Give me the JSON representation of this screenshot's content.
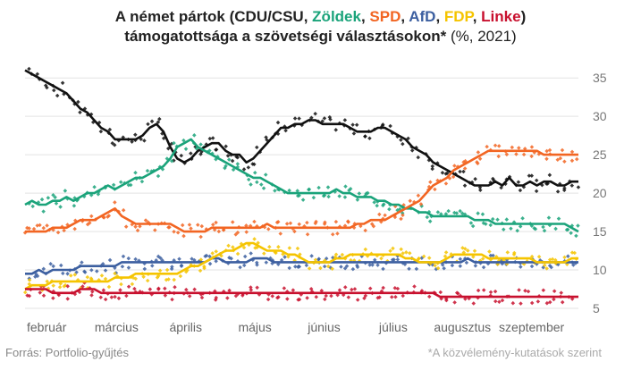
{
  "title": {
    "prefix": "A német pártok (",
    "parties": [
      {
        "name": "CDU/CSU",
        "color": "#222222"
      },
      {
        "name": "Zöldek",
        "color": "#1aa37a"
      },
      {
        "name": "SPD",
        "color": "#f26522"
      },
      {
        "name": "AfD",
        "color": "#3c5fa0"
      },
      {
        "name": "FDP",
        "color": "#f5c400"
      },
      {
        "name": "Linke",
        "color": "#c8102e"
      }
    ],
    "separator": ", ",
    "suffix": ")",
    "line2_bold": "támogatottsága a szövetségi választásokon*",
    "line2_unit": " (%, 2021)"
  },
  "footer": {
    "source": "Forrás: Portfolio-gyűjtés",
    "note": "*A közvélemény-kutatások szerint"
  },
  "chart_data": {
    "type": "line",
    "title": "A német pártok (CDU/CSU, Zöldek, SPD, AfD, FDP, Linke) támogatottsága a szövetségi választásokon* (%, 2021)",
    "x_ticks": [
      "február",
      "március",
      "április",
      "május",
      "június",
      "július",
      "augusztus",
      "szeptember"
    ],
    "x_tick_positions": [
      0.0,
      1.0,
      2.0,
      3.0,
      4.0,
      5.0,
      6.0,
      7.0
    ],
    "xlim": [
      0.0,
      8.0
    ],
    "ylim": [
      5,
      37
    ],
    "y_ticks": [
      5,
      10,
      15,
      20,
      25,
      30,
      35
    ],
    "grid": "horizontal",
    "y_axis_side": "right",
    "series": [
      {
        "name": "CDU/CSU",
        "color": "#111111",
        "x": [
          0.0,
          0.1,
          0.2,
          0.3,
          0.4,
          0.5,
          0.6,
          0.7,
          0.8,
          0.9,
          1.0,
          1.1,
          1.2,
          1.3,
          1.4,
          1.5,
          1.6,
          1.7,
          1.8,
          1.9,
          2.0,
          2.1,
          2.2,
          2.3,
          2.4,
          2.5,
          2.6,
          2.7,
          2.8,
          2.9,
          3.0,
          3.1,
          3.2,
          3.3,
          3.4,
          3.5,
          3.6,
          3.7,
          3.8,
          3.9,
          4.0,
          4.1,
          4.2,
          4.3,
          4.4,
          4.5,
          4.6,
          4.7,
          4.8,
          4.9,
          5.0,
          5.1,
          5.2,
          5.3,
          5.4,
          5.5,
          5.6,
          5.7,
          5.8,
          5.9,
          6.0,
          6.1,
          6.2,
          6.3,
          6.4,
          6.5,
          6.6,
          6.7,
          6.8,
          6.9,
          7.0,
          7.1,
          7.2,
          7.3,
          7.4,
          7.5,
          7.6,
          7.7,
          7.8,
          7.9,
          8.0
        ],
        "values": [
          36.0,
          35.5,
          35.0,
          34.5,
          34.0,
          33.5,
          33.0,
          32.0,
          31.0,
          30.5,
          29.5,
          28.5,
          28.0,
          27.0,
          27.0,
          27.0,
          27.0,
          27.5,
          28.5,
          29.0,
          28.0,
          26.0,
          24.5,
          24.0,
          24.5,
          25.5,
          26.0,
          26.5,
          26.5,
          25.5,
          25.0,
          25.0,
          24.0,
          24.5,
          25.5,
          26.5,
          27.5,
          28.5,
          28.5,
          29.0,
          29.0,
          29.5,
          29.5,
          29.0,
          29.0,
          29.0,
          29.0,
          28.5,
          28.0,
          28.0,
          28.0,
          28.5,
          28.5,
          28.0,
          27.5,
          27.0,
          26.0,
          25.5,
          25.0,
          24.0,
          23.5,
          23.0,
          22.5,
          22.0,
          21.5,
          21.0,
          21.0,
          21.0,
          21.5,
          21.0,
          22.0,
          21.0,
          21.0,
          21.5,
          21.0,
          21.5,
          21.5,
          21.0,
          21.0,
          21.5,
          21.5
        ]
      },
      {
        "name": "Zöldek",
        "color": "#1aa37a",
        "x": [
          0.0,
          0.1,
          0.2,
          0.3,
          0.4,
          0.5,
          0.6,
          0.7,
          0.8,
          0.9,
          1.0,
          1.1,
          1.2,
          1.3,
          1.4,
          1.5,
          1.6,
          1.7,
          1.8,
          1.9,
          2.0,
          2.1,
          2.2,
          2.3,
          2.4,
          2.5,
          2.6,
          2.7,
          2.8,
          2.9,
          3.0,
          3.1,
          3.2,
          3.3,
          3.4,
          3.5,
          3.6,
          3.7,
          3.8,
          3.9,
          4.0,
          4.1,
          4.2,
          4.3,
          4.4,
          4.5,
          4.6,
          4.7,
          4.8,
          4.9,
          5.0,
          5.1,
          5.2,
          5.3,
          5.4,
          5.5,
          5.6,
          5.7,
          5.8,
          5.9,
          6.0,
          6.1,
          6.2,
          6.3,
          6.4,
          6.5,
          6.6,
          6.7,
          6.8,
          6.9,
          7.0,
          7.1,
          7.2,
          7.3,
          7.4,
          7.5,
          7.6,
          7.7,
          7.8,
          7.9,
          8.0
        ],
        "values": [
          18.5,
          19.0,
          18.5,
          18.5,
          19.0,
          19.0,
          19.5,
          19.0,
          19.5,
          20.0,
          20.0,
          20.5,
          21.0,
          20.5,
          21.0,
          21.5,
          22.0,
          22.0,
          22.5,
          23.0,
          23.5,
          24.5,
          26.0,
          26.5,
          27.0,
          26.0,
          25.5,
          25.0,
          24.5,
          24.0,
          23.5,
          23.0,
          22.5,
          22.0,
          22.0,
          21.5,
          21.0,
          20.5,
          20.0,
          20.0,
          20.0,
          20.0,
          20.0,
          20.0,
          20.0,
          20.5,
          20.0,
          20.0,
          19.5,
          19.5,
          19.5,
          19.0,
          19.0,
          18.5,
          18.5,
          18.0,
          18.0,
          17.5,
          17.5,
          17.0,
          17.0,
          17.0,
          17.0,
          17.0,
          17.0,
          16.5,
          16.5,
          16.5,
          16.0,
          16.0,
          16.0,
          16.0,
          16.0,
          16.0,
          16.0,
          16.0,
          16.0,
          16.0,
          16.0,
          15.5,
          15.0
        ]
      },
      {
        "name": "SPD",
        "color": "#f26522",
        "x": [
          0.0,
          0.1,
          0.2,
          0.3,
          0.4,
          0.5,
          0.6,
          0.7,
          0.8,
          0.9,
          1.0,
          1.1,
          1.2,
          1.3,
          1.4,
          1.5,
          1.6,
          1.7,
          1.8,
          1.9,
          2.0,
          2.1,
          2.2,
          2.3,
          2.4,
          2.5,
          2.6,
          2.7,
          2.8,
          2.9,
          3.0,
          3.1,
          3.2,
          3.3,
          3.4,
          3.5,
          3.6,
          3.7,
          3.8,
          3.9,
          4.0,
          4.1,
          4.2,
          4.3,
          4.4,
          4.5,
          4.6,
          4.7,
          4.8,
          4.9,
          5.0,
          5.1,
          5.2,
          5.3,
          5.4,
          5.5,
          5.6,
          5.7,
          5.8,
          5.9,
          6.0,
          6.1,
          6.2,
          6.3,
          6.4,
          6.5,
          6.6,
          6.7,
          6.8,
          6.9,
          7.0,
          7.1,
          7.2,
          7.3,
          7.4,
          7.5,
          7.6,
          7.7,
          7.8,
          7.9,
          8.0
        ],
        "values": [
          15.0,
          15.0,
          15.0,
          15.0,
          15.5,
          15.5,
          15.5,
          16.0,
          16.5,
          16.5,
          16.5,
          17.0,
          17.5,
          18.0,
          17.0,
          16.5,
          16.0,
          16.0,
          16.0,
          16.0,
          16.0,
          16.0,
          15.5,
          15.0,
          15.0,
          15.0,
          15.0,
          15.5,
          15.5,
          15.5,
          15.5,
          15.5,
          15.5,
          15.5,
          15.5,
          16.0,
          15.5,
          15.5,
          15.5,
          15.5,
          15.5,
          15.5,
          15.5,
          15.5,
          15.5,
          15.5,
          15.5,
          15.5,
          16.0,
          16.0,
          16.5,
          16.5,
          16.5,
          17.0,
          17.5,
          18.0,
          18.5,
          19.0,
          20.0,
          21.0,
          21.5,
          22.0,
          23.0,
          23.5,
          24.0,
          24.5,
          25.0,
          25.5,
          25.5,
          25.5,
          25.5,
          25.5,
          25.5,
          25.5,
          25.5,
          25.0,
          25.0,
          25.0,
          25.0,
          25.0,
          25.0
        ]
      },
      {
        "name": "AfD",
        "color": "#3c5fa0",
        "x": [
          0.0,
          0.1,
          0.2,
          0.3,
          0.4,
          0.5,
          0.6,
          0.7,
          0.8,
          0.9,
          1.0,
          1.1,
          1.2,
          1.3,
          1.4,
          1.5,
          1.6,
          1.7,
          1.8,
          1.9,
          2.0,
          2.1,
          2.2,
          2.3,
          2.4,
          2.5,
          2.6,
          2.7,
          2.8,
          2.9,
          3.0,
          3.1,
          3.2,
          3.3,
          3.4,
          3.5,
          3.6,
          3.7,
          3.8,
          3.9,
          4.0,
          4.1,
          4.2,
          4.3,
          4.4,
          4.5,
          4.6,
          4.7,
          4.8,
          4.9,
          5.0,
          5.1,
          5.2,
          5.3,
          5.4,
          5.5,
          5.6,
          5.7,
          5.8,
          5.9,
          6.0,
          6.1,
          6.2,
          6.3,
          6.4,
          6.5,
          6.6,
          6.7,
          6.8,
          6.9,
          7.0,
          7.1,
          7.2,
          7.3,
          7.4,
          7.5,
          7.6,
          7.7,
          7.8,
          7.9,
          8.0
        ],
        "values": [
          9.5,
          9.5,
          10.0,
          9.5,
          10.0,
          10.0,
          10.0,
          10.0,
          10.5,
          10.5,
          10.5,
          10.5,
          10.5,
          10.5,
          11.0,
          11.0,
          11.0,
          11.0,
          11.0,
          11.0,
          11.0,
          11.0,
          11.0,
          11.0,
          11.0,
          11.0,
          11.0,
          11.5,
          11.5,
          11.0,
          11.0,
          11.0,
          11.0,
          11.5,
          11.5,
          11.5,
          11.0,
          11.0,
          11.0,
          11.0,
          11.0,
          11.0,
          11.0,
          11.0,
          11.0,
          11.0,
          11.0,
          11.0,
          11.0,
          11.0,
          11.0,
          11.0,
          11.0,
          11.0,
          11.0,
          11.0,
          11.0,
          11.0,
          11.0,
          11.0,
          11.0,
          11.0,
          11.0,
          11.0,
          11.5,
          11.0,
          11.0,
          11.0,
          11.0,
          11.0,
          11.0,
          11.0,
          11.0,
          11.0,
          11.0,
          11.0,
          11.0,
          11.0,
          11.0,
          11.0,
          11.0
        ]
      },
      {
        "name": "FDP",
        "color": "#f5c400",
        "x": [
          0.0,
          0.1,
          0.2,
          0.3,
          0.4,
          0.5,
          0.6,
          0.7,
          0.8,
          0.9,
          1.0,
          1.1,
          1.2,
          1.3,
          1.4,
          1.5,
          1.6,
          1.7,
          1.8,
          1.9,
          2.0,
          2.1,
          2.2,
          2.3,
          2.4,
          2.5,
          2.6,
          2.7,
          2.8,
          2.9,
          3.0,
          3.1,
          3.2,
          3.3,
          3.4,
          3.5,
          3.6,
          3.7,
          3.8,
          3.9,
          4.0,
          4.1,
          4.2,
          4.3,
          4.4,
          4.5,
          4.6,
          4.7,
          4.8,
          4.9,
          5.0,
          5.1,
          5.2,
          5.3,
          5.4,
          5.5,
          5.6,
          5.7,
          5.8,
          5.9,
          6.0,
          6.1,
          6.2,
          6.3,
          6.4,
          6.5,
          6.6,
          6.7,
          6.8,
          6.9,
          7.0,
          7.1,
          7.2,
          7.3,
          7.4,
          7.5,
          7.6,
          7.7,
          7.8,
          7.9,
          8.0
        ],
        "values": [
          7.5,
          8.0,
          8.0,
          8.0,
          8.5,
          8.5,
          8.5,
          8.5,
          8.5,
          8.5,
          8.5,
          8.5,
          8.5,
          9.0,
          9.0,
          9.0,
          9.5,
          9.5,
          9.5,
          9.5,
          9.5,
          9.5,
          9.5,
          10.0,
          10.5,
          10.5,
          11.0,
          11.5,
          12.0,
          12.5,
          12.5,
          13.0,
          13.5,
          13.5,
          13.0,
          12.5,
          12.5,
          12.5,
          12.0,
          12.0,
          11.5,
          11.0,
          11.0,
          11.0,
          11.0,
          11.5,
          11.5,
          12.0,
          12.0,
          12.0,
          12.0,
          12.0,
          12.0,
          12.0,
          12.0,
          11.5,
          11.5,
          11.0,
          11.0,
          11.0,
          11.0,
          11.5,
          12.0,
          12.0,
          12.0,
          12.0,
          12.0,
          11.5,
          11.5,
          11.5,
          11.5,
          11.5,
          11.5,
          11.5,
          11.0,
          11.0,
          11.0,
          11.0,
          11.0,
          11.5,
          11.5
        ]
      },
      {
        "name": "Linke",
        "color": "#c8102e",
        "x": [
          0.0,
          0.1,
          0.2,
          0.3,
          0.4,
          0.5,
          0.6,
          0.7,
          0.8,
          0.9,
          1.0,
          1.1,
          1.2,
          1.3,
          1.4,
          1.5,
          1.6,
          1.7,
          1.8,
          1.9,
          2.0,
          2.1,
          2.2,
          2.3,
          2.4,
          2.5,
          2.6,
          2.7,
          2.8,
          2.9,
          3.0,
          3.1,
          3.2,
          3.3,
          3.4,
          3.5,
          3.6,
          3.7,
          3.8,
          3.9,
          4.0,
          4.1,
          4.2,
          4.3,
          4.4,
          4.5,
          4.6,
          4.7,
          4.8,
          4.9,
          5.0,
          5.1,
          5.2,
          5.3,
          5.4,
          5.5,
          5.6,
          5.7,
          5.8,
          5.9,
          6.0,
          6.1,
          6.2,
          6.3,
          6.4,
          6.5,
          6.6,
          6.7,
          6.8,
          6.9,
          7.0,
          7.1,
          7.2,
          7.3,
          7.4,
          7.5,
          7.6,
          7.7,
          7.8,
          7.9,
          8.0
        ],
        "values": [
          7.5,
          7.5,
          7.5,
          7.5,
          7.0,
          7.0,
          7.0,
          7.0,
          7.5,
          7.5,
          7.5,
          7.0,
          7.0,
          7.0,
          7.0,
          7.0,
          7.0,
          7.0,
          7.0,
          7.0,
          7.0,
          7.0,
          7.0,
          7.0,
          7.0,
          7.0,
          7.0,
          7.0,
          7.0,
          7.0,
          7.0,
          7.0,
          7.0,
          7.0,
          7.0,
          7.0,
          7.0,
          7.0,
          7.0,
          7.0,
          7.0,
          7.0,
          7.0,
          7.0,
          7.0,
          7.0,
          7.0,
          7.0,
          7.0,
          7.0,
          7.0,
          7.0,
          7.0,
          7.0,
          7.0,
          7.0,
          7.0,
          7.0,
          7.0,
          7.0,
          6.5,
          6.5,
          6.5,
          6.5,
          6.5,
          6.5,
          6.5,
          6.5,
          6.5,
          6.5,
          6.5,
          6.5,
          6.5,
          6.5,
          6.5,
          6.5,
          6.5,
          6.5,
          6.5,
          6.5,
          6.5
        ]
      }
    ]
  }
}
